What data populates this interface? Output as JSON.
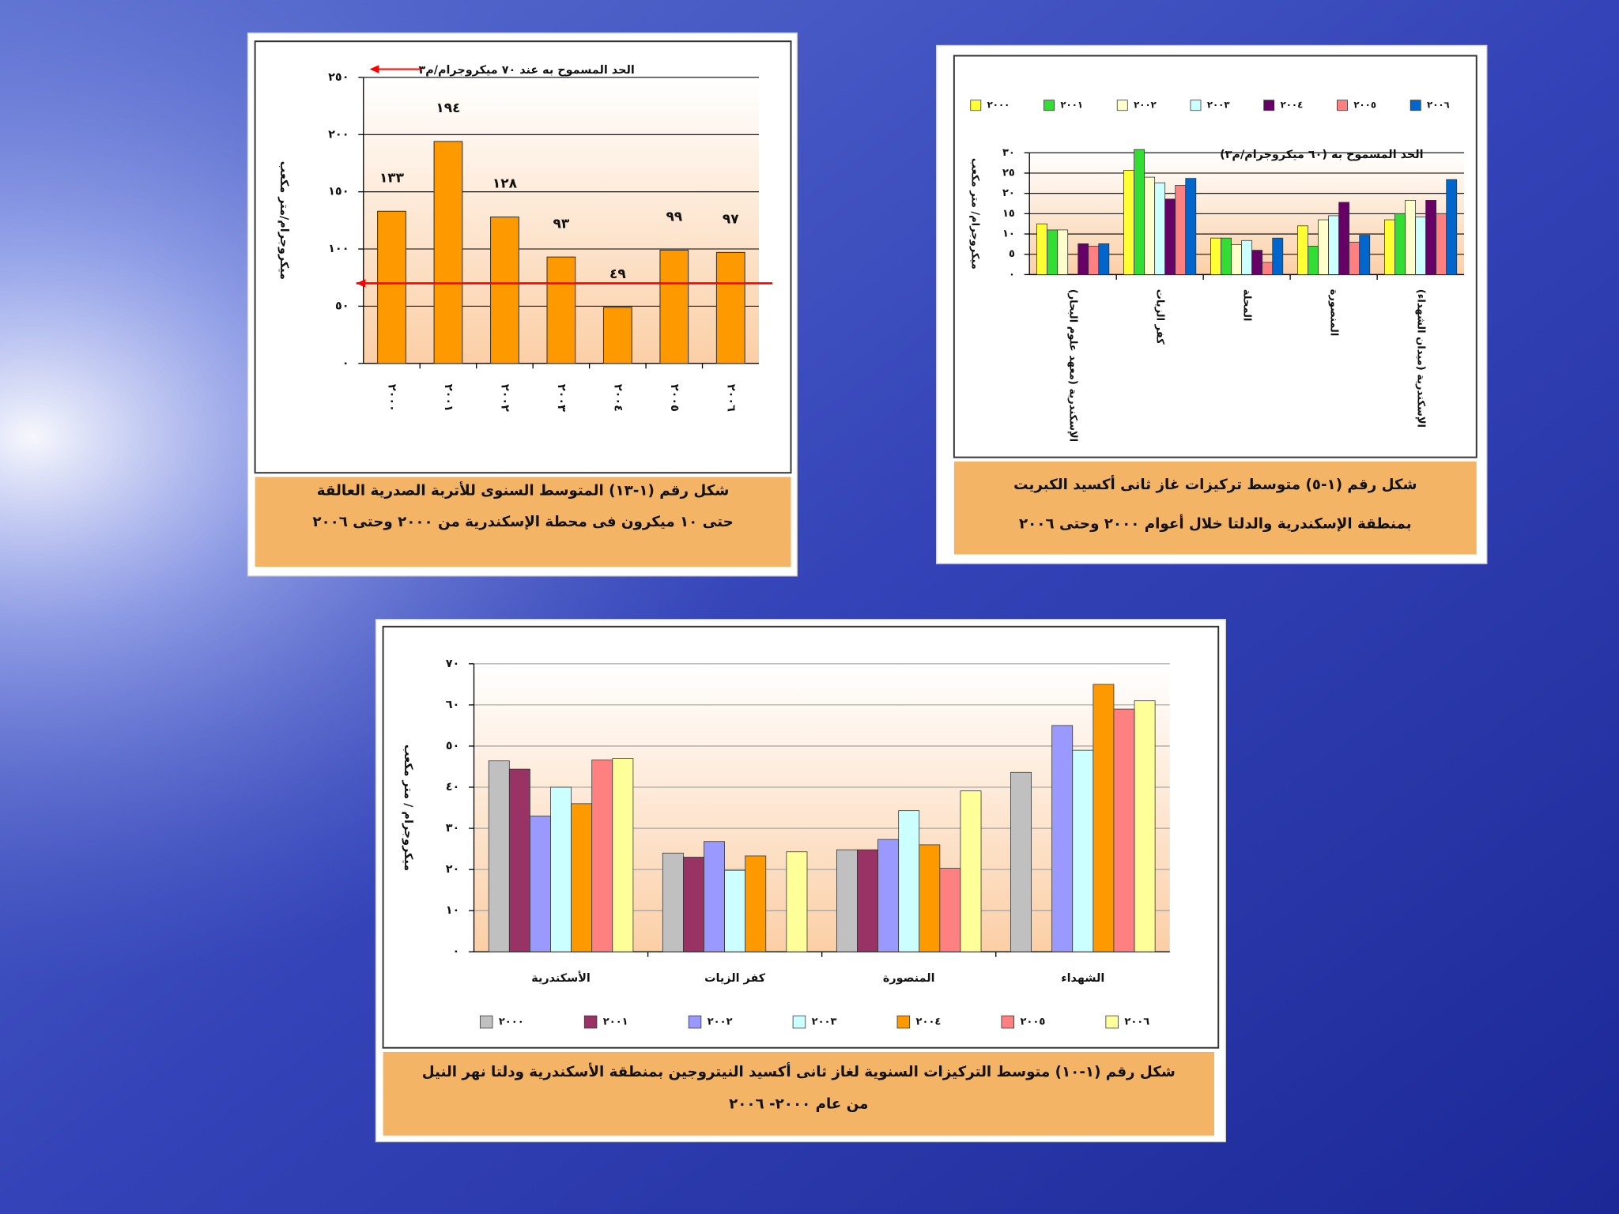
{
  "chart_data": [
    {
      "type": "bar",
      "categories": [
        "٢٠٠٠",
        "٢٠٠١",
        "٢٠٠٢",
        "٢٠٠٣",
        "٢٠٠٤",
        "٢٠٠٥",
        "٢٠٠٦"
      ],
      "values": [
        133,
        194,
        128,
        93,
        49,
        99,
        97
      ],
      "value_labels": [
        "١٣٣",
        "١٩٤",
        "١٢٨",
        "٩٣",
        "٤٩",
        "٩٩",
        "٩٧"
      ],
      "color": "#ff9900",
      "ylim": [
        0,
        250
      ],
      "yticks": [
        {
          "value": 0,
          "label": "٠"
        },
        {
          "value": 50,
          "label": "٥٠"
        },
        {
          "value": 100,
          "label": "١٠٠"
        },
        {
          "value": 150,
          "label": "١٥٠"
        },
        {
          "value": 200,
          "label": "٢٠٠"
        },
        {
          "value": 250,
          "label": "٢٥٠"
        }
      ],
      "grid": true,
      "y_label": "ميكروجرام/متر مكعب",
      "annotation": "الحد المسموح به عند ٧٠ ميكروجرام/م٣",
      "reference_line": 70,
      "reference_color": "#ff0000",
      "caption": [
        "شكل رقم (١-١٣) المتوسط السنوى للأتربة الصدرية العالقة",
        "حتى ١٠ ميكرون فى محطة الإسكندرية من ٢٠٠٠ وحتى ٢٠٠٦"
      ]
    },
    {
      "type": "grouped_bar",
      "categories": [
        "الإسكندرية (معهد علوم البحار)",
        "كفر الزيات",
        "المحلة",
        "المنصورة",
        "الإسكندرية (ميدان الشهداء)"
      ],
      "series": [
        {
          "name": "٢٠٠٠",
          "color": "#ffff33",
          "values": [
            12.5,
            25.7,
            9,
            12,
            13.5
          ]
        },
        {
          "name": "٢٠٠١",
          "color": "#33dd33",
          "values": [
            11,
            30.8,
            9,
            7,
            15
          ]
        },
        {
          "name": "٢٠٠٢",
          "color": "#ffffcc",
          "values": [
            11,
            24,
            7.4,
            13.5,
            18.3
          ]
        },
        {
          "name": "٢٠٠٣",
          "color": "#ccffff",
          "values": [
            null,
            22.6,
            8.4,
            14.5,
            14.2
          ]
        },
        {
          "name": "٢٠٠٤",
          "color": "#660066",
          "values": [
            7.6,
            18.6,
            6,
            17.8,
            18.3
          ]
        },
        {
          "name": "٢٠٠٥",
          "color": "#ff8080",
          "values": [
            7,
            22,
            3,
            8,
            15
          ]
        },
        {
          "name": "٢٠٠٦",
          "color": "#0066cc",
          "values": [
            7.6,
            23.7,
            9,
            9.7,
            23.4
          ]
        }
      ],
      "ylim": [
        0,
        30
      ],
      "yticks": [
        {
          "value": 0,
          "label": "٠"
        },
        {
          "value": 5,
          "label": "٥"
        },
        {
          "value": 10,
          "label": "١٠"
        },
        {
          "value": 15,
          "label": "١٥"
        },
        {
          "value": 20,
          "label": "٢٠"
        },
        {
          "value": 25,
          "label": "٢٥"
        },
        {
          "value": 30,
          "label": "٣٠"
        }
      ],
      "grid": true,
      "legend": "top",
      "y_label": "ميكروجرام/ متر مكعب",
      "annotation": "الحد المسموح به (٦٠ ميكروجرام/م٣)",
      "caption": [
        "شكل رقم (١-٥) متوسط تركيزات غاز ثانى أكسيد الكبريت",
        "بمنطقة الإسكندرية والدلتا خلال أعوام ٢٠٠٠ وحتى ٢٠٠٦"
      ]
    },
    {
      "type": "grouped_bar",
      "categories": [
        "الأسكندرية",
        "كفر الزيات",
        "المنصورة",
        "الشهداء"
      ],
      "series": [
        {
          "name": "٢٠٠٠",
          "color": "#c0c0c0",
          "values": [
            46.4,
            24,
            24.8,
            43.6
          ]
        },
        {
          "name": "٢٠٠١",
          "color": "#993366",
          "values": [
            44.4,
            23,
            24.8,
            null
          ]
        },
        {
          "name": "٢٠٠٢",
          "color": "#9999ff",
          "values": [
            33,
            26.8,
            27.3,
            55
          ]
        },
        {
          "name": "٢٠٠٣",
          "color": "#ccffff",
          "values": [
            40,
            19.8,
            34.3,
            49
          ]
        },
        {
          "name": "٢٠٠٤",
          "color": "#ff9900",
          "values": [
            36,
            23.3,
            26,
            65
          ]
        },
        {
          "name": "٢٠٠٥",
          "color": "#ff8080",
          "values": [
            46.6,
            null,
            20.3,
            59
          ]
        },
        {
          "name": "٢٠٠٦",
          "color": "#ffff99",
          "values": [
            47,
            24.3,
            39.1,
            61
          ]
        }
      ],
      "ylim": [
        0,
        70
      ],
      "yticks": [
        {
          "value": 0,
          "label": "٠"
        },
        {
          "value": 10,
          "label": "١٠"
        },
        {
          "value": 20,
          "label": "٢٠"
        },
        {
          "value": 30,
          "label": "٣٠"
        },
        {
          "value": 40,
          "label": "٤٠"
        },
        {
          "value": 50,
          "label": "٥٠"
        },
        {
          "value": 60,
          "label": "٦٠"
        },
        {
          "value": 70,
          "label": "٧٠"
        }
      ],
      "grid": true,
      "legend": "bottom",
      "y_label": "ميكروجرام / متر مكعب",
      "caption": [
        "شكل رقم (١-١٠) متوسط التركيزات السنوية لغاز ثانى أكسيد النيتروجين بمنطقة الأسكندرية ودلتا نهر النيل",
        "من عام ٢٠٠٠- ٢٠٠٦"
      ]
    }
  ]
}
